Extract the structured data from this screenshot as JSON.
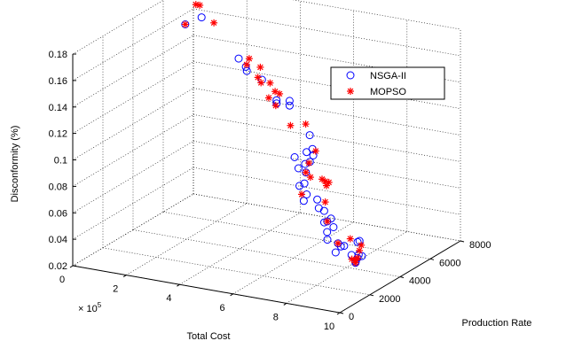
{
  "chart_data": {
    "type": "scatter",
    "dimensions": 3,
    "xlabel": "Total Cost",
    "ylabel": "Production Rate",
    "zlabel": "Disconformity (%)",
    "x_multiplier_label": "× 10",
    "x_multiplier_exponent": "5",
    "x_ticks": [
      0,
      2,
      4,
      6,
      8,
      10
    ],
    "y_ticks": [
      0,
      2000,
      4000,
      6000,
      8000
    ],
    "z_ticks": [
      0.02,
      0.04,
      0.06,
      0.08,
      0.1,
      0.12,
      0.14,
      0.16,
      0.18
    ],
    "x_tick_labels": [
      "0",
      "2",
      "4",
      "6",
      "8",
      "10"
    ],
    "y_tick_labels": [
      "0",
      "2000",
      "4000",
      "6000",
      "8000"
    ],
    "z_tick_labels": [
      "0.02",
      "0.04",
      "0.06",
      "0.08",
      "0.1",
      "0.12",
      "0.14",
      "0.16",
      "0.18"
    ],
    "xlim": [
      0,
      10
    ],
    "ylim": [
      0,
      8000
    ],
    "zlim": [
      0.02,
      0.18
    ],
    "grid": true,
    "legend_position": "top-right",
    "series": [
      {
        "name": "NSGA-II",
        "marker": "circle",
        "color": "#0000ff",
        "points": [
          [
            0.3,
            6930,
            0.1565
          ],
          [
            0.9,
            6950,
            0.1638
          ],
          [
            2.3,
            6930,
            0.1378
          ],
          [
            2.55,
            6960,
            0.1322
          ],
          [
            2.6,
            6940,
            0.1294
          ],
          [
            3.2,
            6880,
            0.1253
          ],
          [
            3.7,
            6960,
            0.111
          ],
          [
            3.75,
            6880,
            0.1093
          ],
          [
            4.3,
            6760,
            0.114
          ],
          [
            4.3,
            6760,
            0.1105
          ],
          [
            5.1,
            6680,
            0.0915
          ],
          [
            5.35,
            6420,
            0.0837
          ],
          [
            5.25,
            6210,
            0.0824
          ],
          [
            5.45,
            6300,
            0.08
          ],
          [
            5.3,
            5330,
            0.0847
          ],
          [
            5.65,
            5720,
            0.0798
          ],
          [
            5.55,
            5580,
            0.0788
          ],
          [
            5.6,
            5050,
            0.0793
          ],
          [
            5.75,
            5280,
            0.0751
          ],
          [
            5.8,
            5090,
            0.0683
          ],
          [
            5.9,
            4580,
            0.0702
          ],
          [
            6.05,
            4800,
            0.0628
          ],
          [
            6.2,
            4340,
            0.0616
          ],
          [
            6.7,
            4450,
            0.0571
          ],
          [
            6.9,
            4460,
            0.047
          ],
          [
            7.15,
            3550,
            0.0713
          ],
          [
            7.45,
            3480,
            0.0643
          ],
          [
            7.6,
            3670,
            0.0577
          ],
          [
            7.7,
            3240,
            0.0588
          ],
          [
            7.9,
            3300,
            0.0548
          ],
          [
            8.0,
            2700,
            0.0555
          ],
          [
            8.1,
            2540,
            0.0512
          ],
          [
            8.3,
            2890,
            0.0468
          ],
          [
            8.55,
            2640,
            0.047
          ],
          [
            8.95,
            2150,
            0.0522
          ],
          [
            8.8,
            1850,
            0.0487
          ],
          [
            9.15,
            2280,
            0.0451
          ],
          [
            9.35,
            2330,
            0.0433
          ],
          [
            9.55,
            1840,
            0.0436
          ],
          [
            9.7,
            1590,
            0.0467
          ],
          [
            9.9,
            1640,
            0.0513
          ],
          [
            10.0,
            1250,
            0.0553
          ],
          [
            10.1,
            1130,
            0.0669
          ],
          [
            10.1,
            1000,
            0.067
          ]
        ]
      },
      {
        "name": "MOPSO",
        "marker": "star",
        "color": "#ff0000",
        "points": [
          [
            0.3,
            6930,
            0.1565
          ],
          [
            0.85,
            6920,
            0.173
          ],
          [
            0.8,
            6750,
            0.1745
          ],
          [
            1.5,
            6700,
            0.1635
          ],
          [
            2.7,
            6920,
            0.1392
          ],
          [
            2.65,
            6840,
            0.135
          ],
          [
            3.2,
            6770,
            0.1355
          ],
          [
            3.2,
            6610,
            0.1289
          ],
          [
            3.3,
            6640,
            0.125
          ],
          [
            3.6,
            6710,
            0.1254
          ],
          [
            3.85,
            6600,
            0.1206
          ],
          [
            4.1,
            6450,
            0.1208
          ],
          [
            3.55,
            6710,
            0.114
          ],
          [
            3.85,
            6640,
            0.1097
          ],
          [
            4.85,
            5850,
            0.1035
          ],
          [
            5.25,
            6150,
            0.104
          ],
          [
            5.5,
            6370,
            0.083
          ],
          [
            5.35,
            6180,
            0.0747
          ],
          [
            5.4,
            6200,
            0.064
          ],
          [
            5.5,
            5440,
            0.0566
          ],
          [
            5.75,
            5280,
            0.0751
          ],
          [
            6.75,
            4580,
            0.0783
          ],
          [
            7.05,
            4500,
            0.0775
          ],
          [
            7.1,
            4250,
            0.0769
          ],
          [
            6.55,
            5140,
            0.0722
          ],
          [
            7.5,
            3460,
            0.0713
          ],
          [
            7.7,
            3240,
            0.0588
          ],
          [
            8.3,
            2890,
            0.0468
          ],
          [
            9.1,
            2290,
            0.0571
          ],
          [
            9.35,
            2330,
            0.0433
          ],
          [
            9.3,
            2040,
            0.0441
          ],
          [
            9.75,
            1470,
            0.0488
          ],
          [
            9.55,
            1840,
            0.0436
          ],
          [
            10.0,
            1300,
            0.0581
          ],
          [
            9.9,
            1600,
            0.0598
          ]
        ]
      }
    ]
  }
}
